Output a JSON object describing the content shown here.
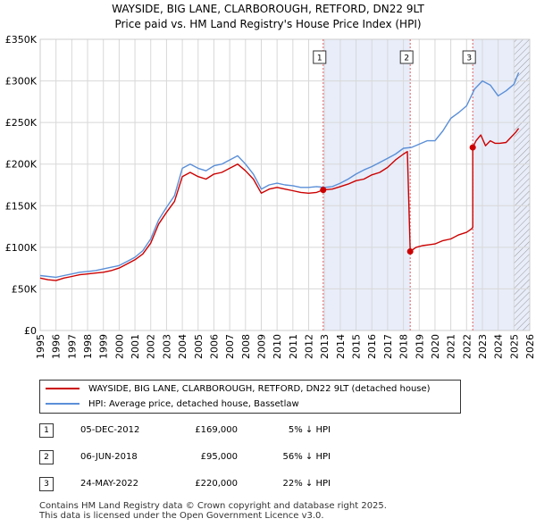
{
  "chart_data": {
    "type": "line",
    "title": "WAYSIDE, BIG LANE, CLARBOROUGH, RETFORD, DN22 9LT",
    "subtitle": "Price paid vs. HM Land Registry's House Price Index (HPI)",
    "xlim": [
      1995,
      2026
    ],
    "ylim": [
      0,
      350000
    ],
    "x_ticks": [
      "1995",
      "1996",
      "1997",
      "1998",
      "1999",
      "2000",
      "2001",
      "2002",
      "2003",
      "2004",
      "2005",
      "2006",
      "2007",
      "2008",
      "2009",
      "2010",
      "2011",
      "2012",
      "2013",
      "2014",
      "2015",
      "2016",
      "2017",
      "2018",
      "2019",
      "2020",
      "2021",
      "2022",
      "2023",
      "2024",
      "2025",
      "2026"
    ],
    "y_ticks": [
      {
        "value": 0,
        "label": "£0"
      },
      {
        "value": 50000,
        "label": "£50K"
      },
      {
        "value": 100000,
        "label": "£100K"
      },
      {
        "value": 150000,
        "label": "£150K"
      },
      {
        "value": 200000,
        "label": "£200K"
      },
      {
        "value": 250000,
        "label": "£250K"
      },
      {
        "value": 300000,
        "label": "£300K"
      },
      {
        "value": 350000,
        "label": "£350K"
      }
    ],
    "grid": true,
    "shaded_regions": [
      {
        "x0": 2012.92,
        "x1": 2018.43
      },
      {
        "x0": 2022.39,
        "x1": 2026
      }
    ],
    "hatched_region": {
      "x0": 2025.0,
      "x1": 2026
    },
    "series": [
      {
        "name": "WAYSIDE, BIG LANE, CLARBOROUGH, RETFORD, DN22 9LT (detached house)",
        "color": "#cc0000",
        "x": [
          1995.0,
          1995.5,
          1996.0,
          1996.5,
          1997.0,
          1997.5,
          1998.0,
          1998.5,
          1999.0,
          1999.5,
          2000.0,
          2000.5,
          2001.0,
          2001.5,
          2002.0,
          2002.5,
          2003.0,
          2003.5,
          2004.0,
          2004.5,
          2005.0,
          2005.5,
          2006.0,
          2006.5,
          2007.0,
          2007.5,
          2008.0,
          2008.5,
          2009.0,
          2009.5,
          2010.0,
          2010.5,
          2011.0,
          2011.5,
          2012.0,
          2012.5,
          2012.92,
          2013.5,
          2014.0,
          2014.5,
          2015.0,
          2015.5,
          2016.0,
          2016.5,
          2017.0,
          2017.5,
          2018.0,
          2018.25,
          2018.43,
          2018.43,
          2018.8,
          2019.2,
          2019.6,
          2020.0,
          2020.5,
          2021.0,
          2021.5,
          2022.0,
          2022.3,
          2022.39,
          2022.39,
          2022.6,
          2022.9,
          2023.2,
          2023.5,
          2023.8,
          2024.1,
          2024.5,
          2024.8,
          2025.1,
          2025.3
        ],
        "values": [
          63000,
          61000,
          60000,
          63000,
          65000,
          67000,
          68000,
          69000,
          70000,
          72000,
          75000,
          80000,
          85000,
          92000,
          105000,
          128000,
          142000,
          155000,
          185000,
          190000,
          185000,
          182000,
          188000,
          190000,
          195000,
          200000,
          192000,
          182000,
          165000,
          170000,
          172000,
          170000,
          168000,
          166000,
          165000,
          166000,
          169000,
          170000,
          173000,
          176000,
          180000,
          182000,
          187000,
          190000,
          196000,
          205000,
          212000,
          215000,
          95000,
          95000,
          100000,
          102000,
          103000,
          104000,
          108000,
          110000,
          115000,
          118000,
          122000,
          124000,
          220000,
          228000,
          235000,
          222000,
          228000,
          225000,
          225000,
          226000,
          232000,
          238000,
          243000
        ]
      },
      {
        "name": "HPI: Average price, detached house, Bassetlaw",
        "color": "#5b8fd8",
        "x": [
          1995.0,
          1995.5,
          1996.0,
          1996.5,
          1997.0,
          1997.5,
          1998.0,
          1998.5,
          1999.0,
          1999.5,
          2000.0,
          2000.5,
          2001.0,
          2001.5,
          2002.0,
          2002.5,
          2003.0,
          2003.5,
          2004.0,
          2004.5,
          2005.0,
          2005.5,
          2006.0,
          2006.5,
          2007.0,
          2007.5,
          2008.0,
          2008.5,
          2009.0,
          2009.5,
          2010.0,
          2010.5,
          2011.0,
          2011.5,
          2012.0,
          2012.5,
          2013.0,
          2013.5,
          2014.0,
          2014.5,
          2015.0,
          2015.5,
          2016.0,
          2016.5,
          2017.0,
          2017.5,
          2018.0,
          2018.5,
          2019.0,
          2019.5,
          2020.0,
          2020.5,
          2021.0,
          2021.5,
          2022.0,
          2022.5,
          2023.0,
          2023.5,
          2024.0,
          2024.5,
          2025.0,
          2025.3
        ],
        "values": [
          66000,
          65000,
          64000,
          66000,
          68000,
          70000,
          71000,
          72000,
          74000,
          76000,
          78000,
          83000,
          88000,
          96000,
          110000,
          133000,
          148000,
          162000,
          195000,
          200000,
          195000,
          192000,
          198000,
          200000,
          205000,
          210000,
          200000,
          188000,
          170000,
          175000,
          177000,
          175000,
          174000,
          172000,
          172000,
          173000,
          172000,
          173000,
          177000,
          182000,
          188000,
          193000,
          197000,
          202000,
          207000,
          212000,
          219000,
          220000,
          224000,
          228000,
          228000,
          240000,
          255000,
          262000,
          270000,
          290000,
          300000,
          295000,
          282000,
          288000,
          296000,
          310000
        ]
      }
    ],
    "transactions": [
      {
        "num": "1",
        "x": 2012.92,
        "value": 169000
      },
      {
        "num": "2",
        "x": 2018.43,
        "value": 95000
      },
      {
        "num": "3",
        "x": 2022.39,
        "value": 220000
      }
    ]
  },
  "legend": {
    "property_label": "WAYSIDE, BIG LANE, CLARBOROUGH, RETFORD, DN22 9LT (detached house)",
    "hpi_label": "HPI: Average price, detached house, Bassetlaw"
  },
  "table": [
    {
      "num": "1",
      "date": "05-DEC-2012",
      "price": "£169,000",
      "hpi": "5% ↓ HPI"
    },
    {
      "num": "2",
      "date": "06-JUN-2018",
      "price": "£95,000",
      "hpi": "56% ↓ HPI"
    },
    {
      "num": "3",
      "date": "24-MAY-2022",
      "price": "£220,000",
      "hpi": "22% ↓ HPI"
    }
  ],
  "footer": {
    "line1": "Contains HM Land Registry data © Crown copyright and database right 2025.",
    "line2": "This data is licensed under the Open Government Licence v3.0."
  }
}
